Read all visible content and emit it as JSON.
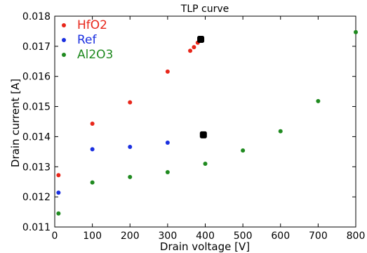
{
  "chart_data": {
    "type": "scatter",
    "title": "TLP curve",
    "xlabel": "Drain voltage [V]",
    "ylabel": "Drain current [A]",
    "xlim": [
      0,
      800
    ],
    "ylim": [
      0.011,
      0.018
    ],
    "xticks": [
      0,
      100,
      200,
      300,
      400,
      500,
      600,
      700,
      800
    ],
    "yticks": [
      0.011,
      0.012,
      0.013,
      0.014,
      0.015,
      0.016,
      0.017,
      0.018
    ],
    "xtick_labels": [
      "0",
      "100",
      "200",
      "300",
      "400",
      "500",
      "600",
      "700",
      "800"
    ],
    "ytick_labels": [
      "0.011",
      "0.012",
      "0.013",
      "0.014",
      "0.015",
      "0.016",
      "0.017",
      "0.018"
    ],
    "grid": false,
    "legend_position": "top-left",
    "series": [
      {
        "name": "HfO2",
        "color": "#e8261a",
        "points": [
          [
            10,
            0.01272
          ],
          [
            100,
            0.01443
          ],
          [
            200,
            0.01514
          ],
          [
            300,
            0.01616
          ],
          [
            360,
            0.01685
          ],
          [
            370,
            0.01697
          ],
          [
            380,
            0.01712
          ]
        ]
      },
      {
        "name": "Ref",
        "color": "#1a2fe0",
        "points": [
          [
            10,
            0.01214
          ],
          [
            100,
            0.01358
          ],
          [
            200,
            0.01366
          ],
          [
            300,
            0.0138
          ]
        ]
      },
      {
        "name": "Al2O3",
        "color": "#1f8a1f",
        "points": [
          [
            10,
            0.01145
          ],
          [
            100,
            0.01248
          ],
          [
            200,
            0.01266
          ],
          [
            300,
            0.01282
          ],
          [
            400,
            0.0131
          ],
          [
            500,
            0.01354
          ],
          [
            600,
            0.01418
          ],
          [
            700,
            0.01518
          ],
          [
            800,
            0.01747
          ]
        ]
      }
    ],
    "highlight_markers": {
      "color": "#000000",
      "points": [
        [
          388,
          0.01723
        ],
        [
          395,
          0.01406
        ]
      ]
    }
  }
}
